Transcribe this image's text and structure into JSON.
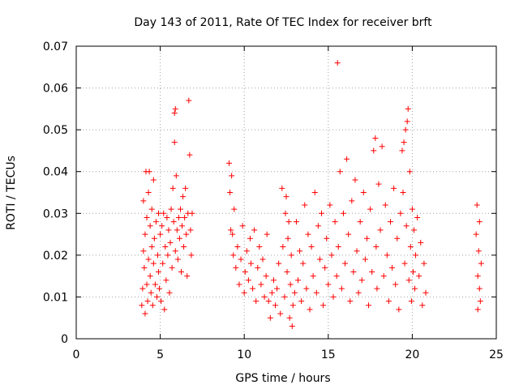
{
  "chart_data": {
    "type": "scatter",
    "title": "Day 143 of 2011, Rate Of TEC Index for receiver brft",
    "xlabel": "GPS time / hours",
    "ylabel": "ROTI / TECUs",
    "xlim": [
      0,
      25
    ],
    "ylim": [
      0,
      0.07
    ],
    "xticks": [
      0,
      5,
      10,
      15,
      20,
      25
    ],
    "xtick_labels": [
      "0",
      "5",
      "10",
      "15",
      "20",
      "25"
    ],
    "yticks": [
      0,
      0.01,
      0.02,
      0.03,
      0.04,
      0.05,
      0.06,
      0.07
    ],
    "ytick_labels": [
      "0",
      "0.01",
      "0.02",
      "0.03",
      "0.04",
      "0.05",
      "0.06",
      "0.07"
    ],
    "grid": true,
    "marker": "+",
    "color": "#ff0000",
    "series": [
      {
        "name": "ROTI",
        "points": [
          [
            3.9,
            0.008
          ],
          [
            3.95,
            0.012
          ],
          [
            4.0,
            0.021
          ],
          [
            4.0,
            0.033
          ],
          [
            4.05,
            0.017
          ],
          [
            4.1,
            0.006
          ],
          [
            4.1,
            0.025
          ],
          [
            4.15,
            0.04
          ],
          [
            4.2,
            0.013
          ],
          [
            4.2,
            0.029
          ],
          [
            4.25,
            0.009
          ],
          [
            4.3,
            0.019
          ],
          [
            4.3,
            0.035
          ],
          [
            4.35,
            0.04
          ],
          [
            4.4,
            0.015
          ],
          [
            4.4,
            0.027
          ],
          [
            4.45,
            0.011
          ],
          [
            4.5,
            0.022
          ],
          [
            4.5,
            0.031
          ],
          [
            4.55,
            0.008
          ],
          [
            4.6,
            0.018
          ],
          [
            4.6,
            0.038
          ],
          [
            4.65,
            0.024
          ],
          [
            4.7,
            0.013
          ],
          [
            4.75,
            0.028
          ],
          [
            4.8,
            0.01
          ],
          [
            4.85,
            0.02
          ],
          [
            4.9,
            0.016
          ],
          [
            4.9,
            0.03
          ],
          [
            4.95,
            0.012
          ],
          [
            5.0,
            0.025
          ],
          [
            5.05,
            0.009
          ],
          [
            5.1,
            0.027
          ],
          [
            5.15,
            0.018
          ],
          [
            5.2,
            0.03
          ],
          [
            5.25,
            0.007
          ],
          [
            5.3,
            0.022
          ],
          [
            5.35,
            0.014
          ],
          [
            5.4,
            0.029
          ],
          [
            5.45,
            0.02
          ],
          [
            5.5,
            0.026
          ],
          [
            5.55,
            0.011
          ],
          [
            5.6,
            0.023
          ],
          [
            5.65,
            0.031
          ],
          [
            5.7,
            0.017
          ],
          [
            5.75,
            0.036
          ],
          [
            5.8,
            0.028
          ],
          [
            5.85,
            0.047
          ],
          [
            5.85,
            0.054
          ],
          [
            5.9,
            0.055
          ],
          [
            5.9,
            0.021
          ],
          [
            5.95,
            0.039
          ],
          [
            6.0,
            0.026
          ],
          [
            6.05,
            0.019
          ],
          [
            6.1,
            0.029
          ],
          [
            6.15,
            0.024
          ],
          [
            6.2,
            0.031
          ],
          [
            6.25,
            0.016
          ],
          [
            6.3,
            0.027
          ],
          [
            6.35,
            0.034
          ],
          [
            6.4,
            0.022
          ],
          [
            6.45,
            0.029
          ],
          [
            6.5,
            0.036
          ],
          [
            6.55,
            0.025
          ],
          [
            6.6,
            0.015
          ],
          [
            6.65,
            0.03
          ],
          [
            6.7,
            0.057
          ],
          [
            6.75,
            0.044
          ],
          [
            6.8,
            0.026
          ],
          [
            6.85,
            0.02
          ],
          [
            6.9,
            0.03
          ],
          [
            9.1,
            0.042
          ],
          [
            9.15,
            0.035
          ],
          [
            9.2,
            0.026
          ],
          [
            9.25,
            0.039
          ],
          [
            9.3,
            0.025
          ],
          [
            9.35,
            0.02
          ],
          [
            9.4,
            0.031
          ],
          [
            9.5,
            0.017
          ],
          [
            9.6,
            0.022
          ],
          [
            9.7,
            0.013
          ],
          [
            9.8,
            0.019
          ],
          [
            9.9,
            0.027
          ],
          [
            10.0,
            0.011
          ],
          [
            10.05,
            0.016
          ],
          [
            10.15,
            0.021
          ],
          [
            10.25,
            0.014
          ],
          [
            10.35,
            0.024
          ],
          [
            10.4,
            0.018
          ],
          [
            10.5,
            0.012
          ],
          [
            10.6,
            0.026
          ],
          [
            10.7,
            0.009
          ],
          [
            10.8,
            0.017
          ],
          [
            10.9,
            0.022
          ],
          [
            11.0,
            0.013
          ],
          [
            11.1,
            0.019
          ],
          [
            11.2,
            0.01
          ],
          [
            11.3,
            0.015
          ],
          [
            11.35,
            0.025
          ],
          [
            11.45,
            0.009
          ],
          [
            11.55,
            0.005
          ],
          [
            11.65,
            0.011
          ],
          [
            11.75,
            0.014
          ],
          [
            11.85,
            0.008
          ],
          [
            11.95,
            0.012
          ],
          [
            12.05,
            0.018
          ],
          [
            12.15,
            0.006
          ],
          [
            12.25,
            0.036
          ],
          [
            12.3,
            0.022
          ],
          [
            12.4,
            0.01
          ],
          [
            12.45,
            0.03
          ],
          [
            12.5,
            0.034
          ],
          [
            12.55,
            0.016
          ],
          [
            12.6,
            0.024
          ],
          [
            12.65,
            0.028
          ],
          [
            12.7,
            0.005
          ],
          [
            12.75,
            0.013
          ],
          [
            12.8,
            0.02
          ],
          [
            12.85,
            0.003
          ],
          [
            12.9,
            0.008
          ],
          [
            13.0,
            0.011
          ],
          [
            13.1,
            0.028
          ],
          [
            13.2,
            0.014
          ],
          [
            13.3,
            0.021
          ],
          [
            13.4,
            0.009
          ],
          [
            13.5,
            0.018
          ],
          [
            13.6,
            0.032
          ],
          [
            13.7,
            0.012
          ],
          [
            13.8,
            0.025
          ],
          [
            13.9,
            0.007
          ],
          [
            14.0,
            0.022
          ],
          [
            14.1,
            0.015
          ],
          [
            14.2,
            0.035
          ],
          [
            14.3,
            0.011
          ],
          [
            14.4,
            0.027
          ],
          [
            14.5,
            0.019
          ],
          [
            14.6,
            0.03
          ],
          [
            14.7,
            0.008
          ],
          [
            14.8,
            0.017
          ],
          [
            14.9,
            0.024
          ],
          [
            15.0,
            0.013
          ],
          [
            15.1,
            0.032
          ],
          [
            15.2,
            0.02
          ],
          [
            15.3,
            0.01
          ],
          [
            15.4,
            0.028
          ],
          [
            15.5,
            0.015
          ],
          [
            15.55,
            0.066
          ],
          [
            15.6,
            0.022
          ],
          [
            15.7,
            0.04
          ],
          [
            15.8,
            0.012
          ],
          [
            15.9,
            0.03
          ],
          [
            16.0,
            0.018
          ],
          [
            16.1,
            0.043
          ],
          [
            16.2,
            0.025
          ],
          [
            16.3,
            0.009
          ],
          [
            16.4,
            0.033
          ],
          [
            16.5,
            0.016
          ],
          [
            16.6,
            0.038
          ],
          [
            16.7,
            0.021
          ],
          [
            16.8,
            0.011
          ],
          [
            16.9,
            0.028
          ],
          [
            17.0,
            0.014
          ],
          [
            17.1,
            0.035
          ],
          [
            17.2,
            0.019
          ],
          [
            17.3,
            0.024
          ],
          [
            17.4,
            0.008
          ],
          [
            17.5,
            0.031
          ],
          [
            17.6,
            0.016
          ],
          [
            17.7,
            0.045
          ],
          [
            17.8,
            0.048
          ],
          [
            17.85,
            0.022
          ],
          [
            17.9,
            0.012
          ],
          [
            18.0,
            0.037
          ],
          [
            18.1,
            0.026
          ],
          [
            18.2,
            0.046
          ],
          [
            18.3,
            0.015
          ],
          [
            18.4,
            0.032
          ],
          [
            18.5,
            0.02
          ],
          [
            18.6,
            0.009
          ],
          [
            18.7,
            0.028
          ],
          [
            18.8,
            0.017
          ],
          [
            18.9,
            0.036
          ],
          [
            19.0,
            0.013
          ],
          [
            19.1,
            0.024
          ],
          [
            19.2,
            0.007
          ],
          [
            19.3,
            0.03
          ],
          [
            19.4,
            0.045
          ],
          [
            19.45,
            0.035
          ],
          [
            19.5,
            0.047
          ],
          [
            19.55,
            0.018
          ],
          [
            19.6,
            0.05
          ],
          [
            19.65,
            0.027
          ],
          [
            19.7,
            0.052
          ],
          [
            19.75,
            0.055
          ],
          [
            19.8,
            0.014
          ],
          [
            19.85,
            0.04
          ],
          [
            19.9,
            0.022
          ],
          [
            19.95,
            0.009
          ],
          [
            20.0,
            0.031
          ],
          [
            20.05,
            0.016
          ],
          [
            20.1,
            0.026
          ],
          [
            20.15,
            0.012
          ],
          [
            20.2,
            0.02
          ],
          [
            20.3,
            0.029
          ],
          [
            20.4,
            0.015
          ],
          [
            20.5,
            0.023
          ],
          [
            20.6,
            0.008
          ],
          [
            20.7,
            0.018
          ],
          [
            20.8,
            0.011
          ],
          [
            23.8,
            0.025
          ],
          [
            23.85,
            0.032
          ],
          [
            23.9,
            0.015
          ],
          [
            23.9,
            0.007
          ],
          [
            23.95,
            0.021
          ],
          [
            24.0,
            0.012
          ],
          [
            24.0,
            0.028
          ],
          [
            24.05,
            0.009
          ],
          [
            24.1,
            0.018
          ]
        ]
      }
    ]
  }
}
